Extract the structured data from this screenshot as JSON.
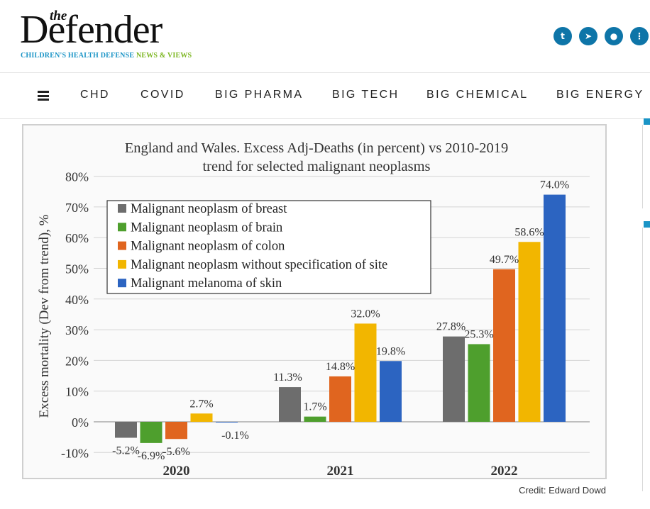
{
  "site": {
    "logo_the": "the",
    "logo_name": "Defender",
    "tagline_a": "CHILDREN'S HEALTH DEFENSE",
    "tagline_b": "NEWS & VIEWS"
  },
  "social": [
    {
      "name": "twitter-icon",
      "glyph": "t"
    },
    {
      "name": "telegram-icon",
      "glyph": "➤"
    },
    {
      "name": "gettr-icon",
      "glyph": "●"
    },
    {
      "name": "more-icon",
      "glyph": "⋮"
    }
  ],
  "nav": {
    "items": [
      "CHD",
      "COVID",
      "BIG PHARMA",
      "BIG TECH",
      "BIG CHEMICAL",
      "BIG ENERGY"
    ]
  },
  "colors": {
    "brand_blue": "#1a94c6",
    "brand_green": "#7ab51d",
    "social_bg": "#0e75a8",
    "breast": "#6d6d6d",
    "brain": "#4e9f2d",
    "colon": "#e0651f",
    "unspecified": "#f2b600",
    "melanoma": "#2c64c1"
  },
  "credit": "Credit: Edward Dowd",
  "chart_data": {
    "type": "bar",
    "title_line1": "England and Wales. Excess Adj-Deaths (in percent) vs 2010-2019",
    "title_line2": "trend for selected malignant neoplasms",
    "ylabel": "Excess mortality (Dev from trend), %",
    "xlabel": "",
    "ylim": [
      -10,
      80
    ],
    "yticks": [
      "-10%",
      "0%",
      "10%",
      "20%",
      "30%",
      "40%",
      "50%",
      "60%",
      "70%",
      "80%"
    ],
    "ytick_values": [
      -10,
      0,
      10,
      20,
      30,
      40,
      50,
      60,
      70,
      80
    ],
    "grid": true,
    "legend_position": "top-left",
    "categories": [
      "2020",
      "2021",
      "2022"
    ],
    "series": [
      {
        "name": "Malignant neoplasm of breast",
        "color_key": "breast",
        "values": [
          -5.2,
          11.3,
          27.8
        ],
        "labels": [
          "-5.2%",
          "11.3%",
          "27.8%"
        ]
      },
      {
        "name": "Malignant neoplasm of brain",
        "color_key": "brain",
        "values": [
          -6.9,
          1.7,
          25.3
        ],
        "labels": [
          "-6.9%",
          "1.7%",
          "25.3%"
        ]
      },
      {
        "name": "Malignant neoplasm of colon",
        "color_key": "colon",
        "values": [
          -5.6,
          14.8,
          49.7
        ],
        "labels": [
          "-5.6%",
          "14.8%",
          "49.7%"
        ]
      },
      {
        "name": "Malignant neoplasm without specification of site",
        "color_key": "unspecified",
        "values": [
          2.7,
          32.0,
          58.6
        ],
        "labels": [
          "2.7%",
          "32.0%",
          "58.6%"
        ]
      },
      {
        "name": "Malignant melanoma of skin",
        "color_key": "melanoma",
        "values": [
          -0.1,
          19.8,
          74.0
        ],
        "labels": [
          "-0.1%",
          "19.8%",
          "74.0%"
        ]
      }
    ]
  }
}
